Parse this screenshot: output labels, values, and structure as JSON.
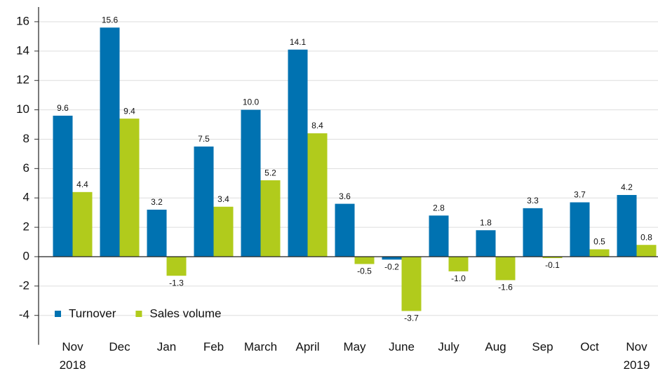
{
  "chart_data": {
    "type": "bar",
    "categories": [
      "Nov 2018",
      "Dec",
      "Jan",
      "Feb",
      "March",
      "April",
      "May",
      "June",
      "July",
      "Aug",
      "Sep",
      "Oct",
      "Nov 2019"
    ],
    "series": [
      {
        "name": "Turnover",
        "color": "#0072b1",
        "values": [
          9.6,
          15.6,
          3.2,
          7.5,
          10.0,
          14.1,
          3.6,
          -0.2,
          2.8,
          1.8,
          3.3,
          3.7,
          4.2
        ],
        "value_labels": [
          "9.6",
          "15.6",
          "3.2",
          "7.5",
          "10.0",
          "14.1",
          "3.6",
          "-0.2",
          "2.8",
          "1.8",
          "3.3",
          "3.7",
          "4.2"
        ]
      },
      {
        "name": "Sales volume",
        "color": "#b1cb1c",
        "values": [
          4.4,
          9.4,
          -1.3,
          3.4,
          5.2,
          8.4,
          -0.5,
          -3.7,
          -1.0,
          -1.6,
          -0.1,
          0.5,
          0.8
        ],
        "value_labels": [
          "4.4",
          "9.4",
          "-1.3",
          "3.4",
          "5.2",
          "8.4",
          "-0.5",
          "-3.7",
          "-1.0",
          "-1.6",
          "-0.1",
          "0.5",
          "0.8"
        ]
      }
    ],
    "ylim": [
      -6,
      17
    ],
    "yticks": [
      -4,
      -2,
      0,
      2,
      4,
      6,
      8,
      10,
      12,
      14,
      16
    ],
    "grid": true,
    "legend": "lower left"
  }
}
